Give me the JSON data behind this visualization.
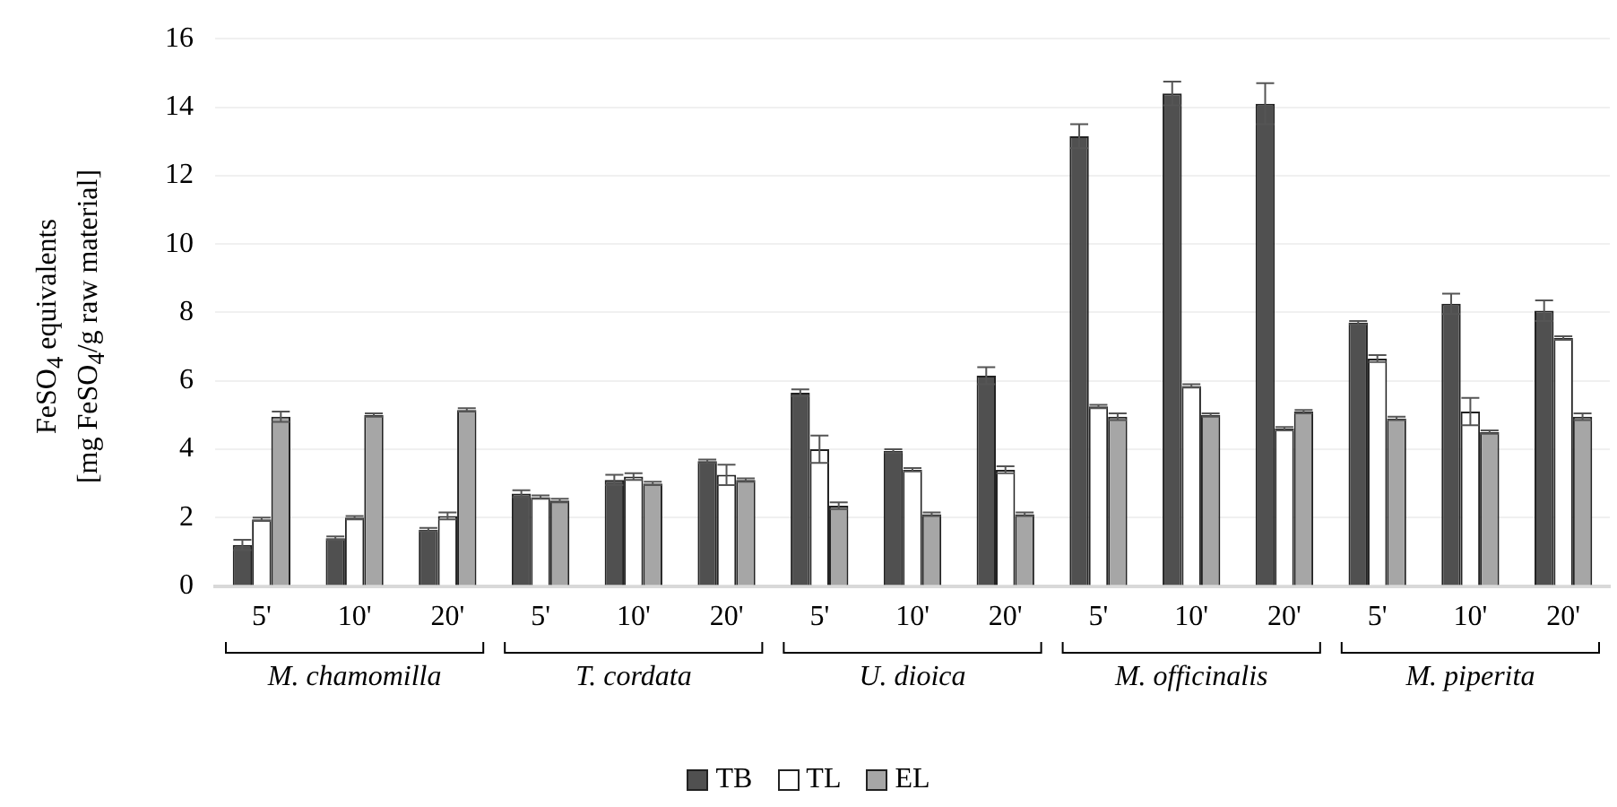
{
  "chart_data": {
    "type": "bar",
    "ylabel": "FeSO$_{4}$ equivalents\n[mg FeSO$_{4}$/g raw material]",
    "categories": [
      "5'",
      "10'",
      "20'",
      "5'",
      "10'",
      "20'",
      "5'",
      "10'",
      "20'",
      "5'",
      "10'",
      "20'",
      "5'",
      "10'",
      "20'"
    ],
    "annotations": [
      "M. chamomilla",
      "T. cordata",
      "U. dioica",
      "M. officinalis",
      "M. piperita"
    ],
    "series": [
      {
        "name": "TB",
        "color": "#505050",
        "values": [
          1.2,
          1.4,
          1.65,
          2.7,
          3.1,
          3.65,
          5.65,
          3.95,
          6.15,
          13.15,
          14.4,
          14.1,
          7.7,
          8.25,
          8.05
        ],
        "errors": [
          0.15,
          0.05,
          0.05,
          0.1,
          0.15,
          0.05,
          0.1,
          0.05,
          0.25,
          0.35,
          0.35,
          0.6,
          0.05,
          0.3,
          0.3
        ]
      },
      {
        "name": "TL",
        "color": "#ffffff",
        "values": [
          1.95,
          2.0,
          2.05,
          2.6,
          3.2,
          3.25,
          4.0,
          3.4,
          3.4,
          5.25,
          5.85,
          4.6,
          6.65,
          5.1,
          7.25
        ],
        "errors": [
          0.05,
          0.05,
          0.1,
          0.05,
          0.1,
          0.3,
          0.4,
          0.05,
          0.1,
          0.05,
          0.05,
          0.05,
          0.1,
          0.4,
          0.05
        ]
      },
      {
        "name": "EL",
        "color": "#a6a6a6",
        "values": [
          4.95,
          5.0,
          5.15,
          2.5,
          3.0,
          3.1,
          2.35,
          2.1,
          2.1,
          4.95,
          5.0,
          5.1,
          4.9,
          4.5,
          4.95
        ],
        "errors": [
          0.15,
          0.05,
          0.05,
          0.05,
          0.05,
          0.05,
          0.1,
          0.05,
          0.05,
          0.1,
          0.05,
          0.05,
          0.05,
          0.05,
          0.1
        ]
      }
    ],
    "ylim": [
      0,
      16
    ],
    "yticks": [
      0,
      2,
      4,
      6,
      8,
      10,
      12,
      14,
      16
    ],
    "grid": "y",
    "legend": "bottom"
  }
}
